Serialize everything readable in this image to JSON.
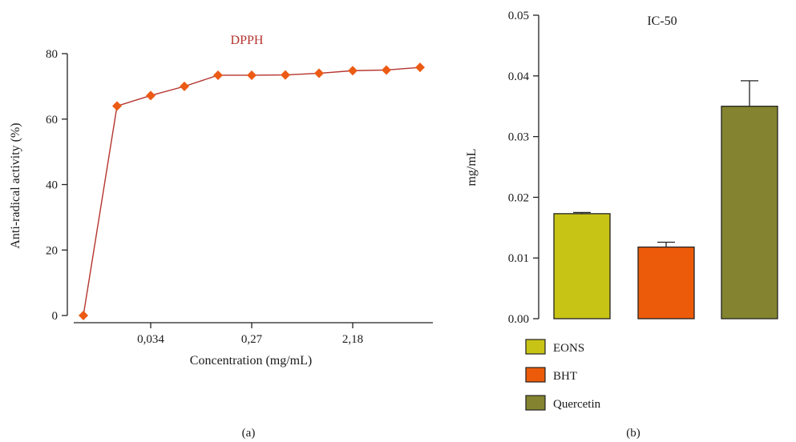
{
  "chart_data": [
    {
      "type": "line",
      "panel_label": "(a)",
      "title": "DPPH",
      "title_color": "#b5332e",
      "xlabel": "Concentration (mg/mL)",
      "ylabel": "Anti-radical activity (%)",
      "ylim": [
        0,
        80
      ],
      "yticks": [
        "0",
        "20",
        "40",
        "60",
        "80"
      ],
      "xtick_labels": [
        "0,034",
        "0,27",
        "2,18"
      ],
      "line_color": "#b5332e",
      "marker_color": "#ec5b14",
      "marker": "diamond",
      "series": [
        {
          "y": [
            0,
            64,
            67.2,
            70,
            73.4,
            73.4,
            73.5,
            74,
            74.8,
            75,
            75.8
          ]
        }
      ],
      "grid": false
    },
    {
      "type": "bar",
      "panel_label": "(b)",
      "title": "IC-50",
      "ylabel": "mg/mL",
      "ylim": [
        0,
        0.05
      ],
      "yticks": [
        "0.00",
        "0.01",
        "0.02",
        "0.03",
        "0.04",
        "0.05"
      ],
      "categories": [
        "EONS",
        "BHT",
        "Quercetin"
      ],
      "values": [
        0.0173,
        0.0118,
        0.035
      ],
      "errors": [
        0.0002,
        0.0008,
        0.0042
      ],
      "colors": [
        "#c8c415",
        "#ec5b09",
        "#848430"
      ],
      "legend": [
        "EONS",
        "BHT",
        "Quercetin"
      ],
      "legend_position": "bottom-left",
      "grid": false
    }
  ]
}
